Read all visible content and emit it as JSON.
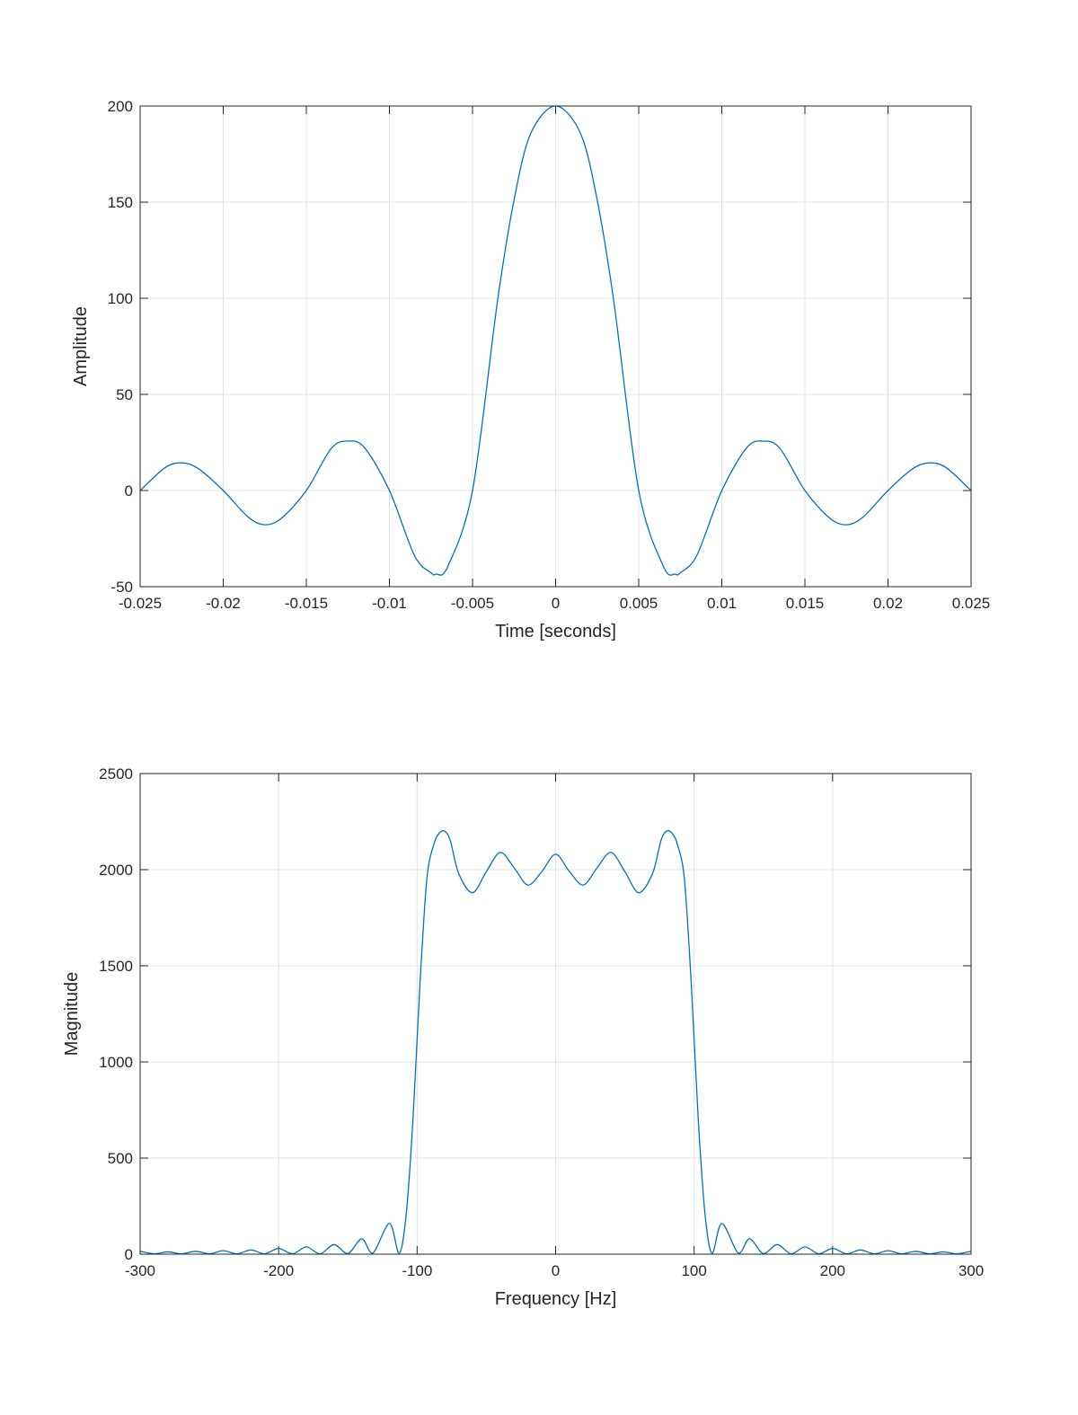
{
  "colors": {
    "series": "#0072BD",
    "grid": "#e3e3e3",
    "axes": "#262626",
    "background": "#ffffff"
  },
  "chart_data": [
    {
      "type": "line",
      "title": "",
      "xlabel": "Time [seconds]",
      "ylabel": "Amplitude",
      "xlim": [
        -0.025,
        0.025
      ],
      "ylim": [
        -50,
        200
      ],
      "grid": true,
      "x_ticks": [
        -0.025,
        -0.02,
        -0.015,
        -0.01,
        -0.005,
        0,
        0.005,
        0.01,
        0.015,
        0.02,
        0.025
      ],
      "x_tick_labels": [
        "-0.025",
        "-0.02",
        "-0.015",
        "-0.01",
        "-0.005",
        "0",
        "0.005",
        "0.01",
        "0.015",
        "0.02",
        "0.025"
      ],
      "y_ticks": [
        -50,
        0,
        50,
        100,
        150,
        200
      ],
      "y_tick_labels": [
        "-50",
        "0",
        "50",
        "100",
        "150",
        "200"
      ],
      "series": [
        {
          "x": [
            -0.025,
            -0.0235,
            -0.0225,
            -0.0215,
            -0.02,
            -0.0185,
            -0.0175,
            -0.0165,
            -0.015,
            -0.0135,
            -0.0125,
            -0.0115,
            -0.01,
            -0.0085,
            -0.0075,
            -0.0072,
            -0.0065,
            -0.005,
            -0.0035,
            -0.0025,
            -0.0015,
            0,
            0.0015,
            0.0025,
            0.0035,
            0.005,
            0.0065,
            0.0072,
            0.0075,
            0.0085,
            0.01,
            0.0115,
            0.0125,
            0.0135,
            0.015,
            0.0165,
            0.0175,
            0.0185,
            0.02,
            0.0215,
            0.0225,
            0.0235,
            0.025
          ],
          "y": [
            0,
            11.9,
            14.4,
            11.4,
            0,
            -13.8,
            -17.8,
            -14.4,
            0,
            21.9,
            25.7,
            22.3,
            0,
            -33.7,
            -42.8,
            -43.5,
            -39.7,
            0,
            98.4,
            151.2,
            185.7,
            200,
            185.7,
            151.2,
            98.4,
            0,
            -39.7,
            -43.5,
            -42.8,
            -33.7,
            0,
            22.3,
            25.7,
            21.9,
            0,
            -14.4,
            -17.8,
            -13.8,
            0,
            11.4,
            14.4,
            11.9,
            0
          ]
        }
      ]
    },
    {
      "type": "line",
      "title": "",
      "xlabel": "Frequency [Hz]",
      "ylabel": "Magnitude",
      "xlim": [
        -300,
        300
      ],
      "ylim": [
        0,
        2500
      ],
      "grid": true,
      "x_ticks": [
        -300,
        -200,
        -100,
        0,
        100,
        200,
        300
      ],
      "x_tick_labels": [
        "-300",
        "-200",
        "-100",
        "0",
        "100",
        "200",
        "300"
      ],
      "y_ticks": [
        0,
        500,
        1000,
        1500,
        2000,
        2500
      ],
      "y_tick_labels": [
        "0",
        "500",
        "1000",
        "1500",
        "2000",
        "2500"
      ],
      "series": [
        {
          "x": [
            -300,
            -290,
            -280,
            -270,
            -260,
            -250,
            -240,
            -230,
            -220,
            -210,
            -200,
            -190,
            -180,
            -170,
            -160,
            -150,
            -140,
            -132,
            -120,
            -113,
            -108,
            -103,
            -98,
            -93,
            -88,
            -84,
            -80,
            -76,
            -70,
            -60,
            -50,
            -40,
            -30,
            -20,
            -10,
            0,
            10,
            20,
            30,
            40,
            50,
            60,
            70,
            76,
            80,
            84,
            88,
            93,
            98,
            103,
            108,
            113,
            120,
            132,
            140,
            150,
            160,
            170,
            180,
            190,
            200,
            210,
            220,
            230,
            240,
            250,
            260,
            270,
            280,
            290,
            300
          ],
          "y": [
            15,
            2,
            12,
            2,
            15,
            2,
            18,
            2,
            22,
            2,
            30,
            2,
            38,
            2,
            50,
            3,
            80,
            5,
            160,
            5,
            200,
            700,
            1400,
            1950,
            2130,
            2190,
            2200,
            2150,
            1980,
            1880,
            1990,
            2090,
            2010,
            1920,
            1990,
            2080,
            1990,
            1920,
            2010,
            2090,
            1990,
            1880,
            1980,
            2150,
            2200,
            2190,
            2130,
            1950,
            1400,
            700,
            200,
            5,
            160,
            5,
            80,
            3,
            50,
            2,
            38,
            2,
            30,
            2,
            22,
            2,
            18,
            2,
            15,
            2,
            12,
            2,
            15
          ]
        }
      ]
    }
  ]
}
